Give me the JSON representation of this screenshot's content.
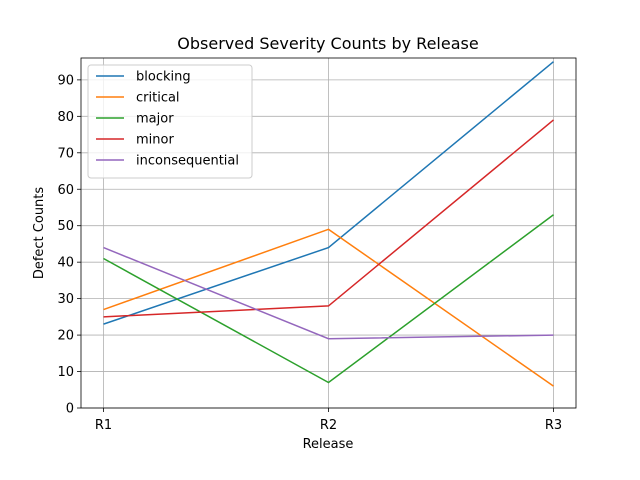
{
  "chart_data": {
    "type": "line",
    "title": "Observed Severity Counts by Release",
    "xlabel": "Release",
    "ylabel": "Defect Counts",
    "categories": [
      "R1",
      "R2",
      "R3"
    ],
    "ylim": [
      0,
      96
    ],
    "yticks": [
      0,
      10,
      20,
      30,
      40,
      50,
      60,
      70,
      80,
      90
    ],
    "grid": true,
    "legend_position": "top-left",
    "series": [
      {
        "name": "blocking",
        "color": "#1f77b4",
        "values": [
          23,
          44,
          95
        ]
      },
      {
        "name": "critical",
        "color": "#ff7f0e",
        "values": [
          27,
          49,
          6
        ]
      },
      {
        "name": "major",
        "color": "#2ca02c",
        "values": [
          41,
          7,
          53
        ]
      },
      {
        "name": "minor",
        "color": "#d62728",
        "values": [
          25,
          28,
          79
        ]
      },
      {
        "name": "inconsequential",
        "color": "#9467bd",
        "values": [
          44,
          19,
          20
        ]
      }
    ]
  }
}
